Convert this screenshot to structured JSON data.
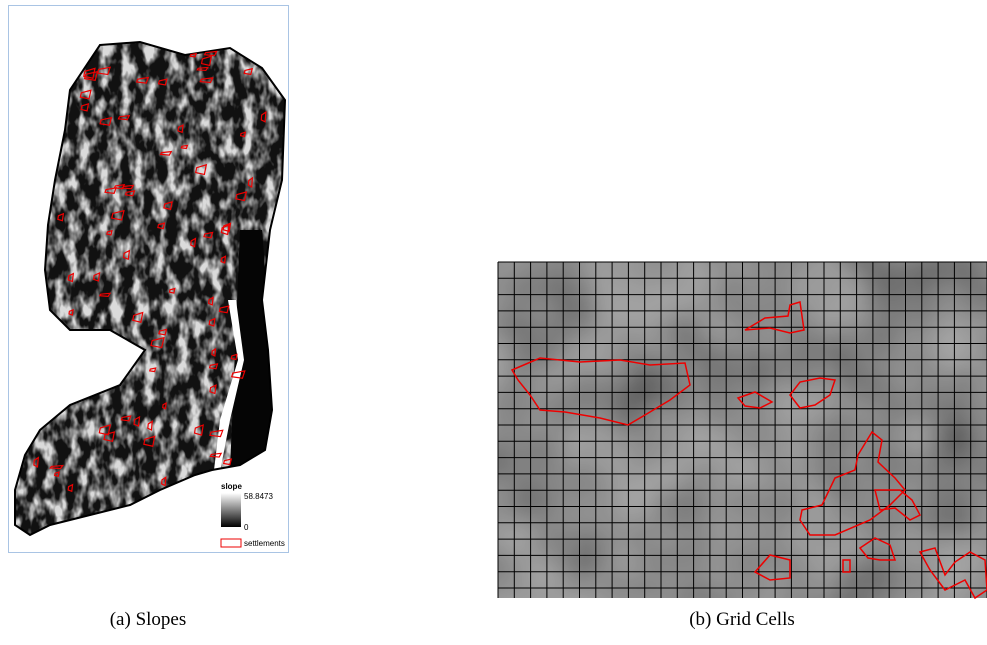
{
  "panels": [
    {
      "caption": "(a) Slopes",
      "legend": {
        "title": "slope",
        "max": 58.8473,
        "min": 0,
        "layer": "settlements"
      }
    },
    {
      "caption": "(b) Grid Cells"
    }
  ]
}
